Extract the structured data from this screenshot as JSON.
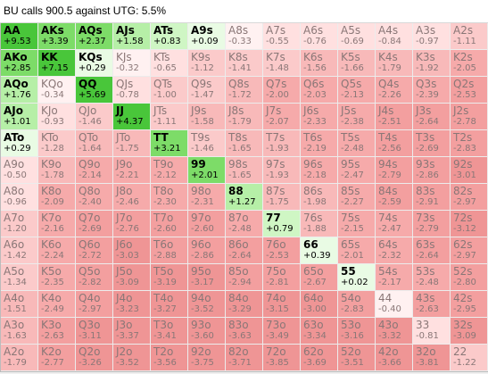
{
  "title": "BU calls 900.5 against UTG: 5.5%",
  "colors": {
    "strong_positive": "#6ccf54",
    "positive": "#c9f3bd",
    "light_positive": "#e8fbe3",
    "neutral_white": "#ffffff",
    "light_negative": "#ffdede",
    "negative": "#f5a9a9",
    "strong_negative": "#ef8f8f"
  },
  "grid": [
    [
      {
        "hand": "AA",
        "ev": "+9.53"
      },
      {
        "hand": "AKs",
        "ev": "+3.39"
      },
      {
        "hand": "AQs",
        "ev": "+2.37"
      },
      {
        "hand": "AJs",
        "ev": "+1.58"
      },
      {
        "hand": "ATs",
        "ev": "+0.83"
      },
      {
        "hand": "A9s",
        "ev": "+0.09"
      },
      {
        "hand": "A8s",
        "ev": "-0.33"
      },
      {
        "hand": "A7s",
        "ev": "-0.55"
      },
      {
        "hand": "A6s",
        "ev": "-0.76"
      },
      {
        "hand": "A5s",
        "ev": "-0.69"
      },
      {
        "hand": "A4s",
        "ev": "-0.84"
      },
      {
        "hand": "A3s",
        "ev": "-0.97"
      },
      {
        "hand": "A2s",
        "ev": "-1.11"
      }
    ],
    [
      {
        "hand": "AKo",
        "ev": "+2.85"
      },
      {
        "hand": "KK",
        "ev": "+7.15"
      },
      {
        "hand": "KQs",
        "ev": "+0.29"
      },
      {
        "hand": "KJs",
        "ev": "-0.32"
      },
      {
        "hand": "KTs",
        "ev": "-0.65"
      },
      {
        "hand": "K9s",
        "ev": "-1.12"
      },
      {
        "hand": "K8s",
        "ev": "-1.41"
      },
      {
        "hand": "K7s",
        "ev": "-1.48"
      },
      {
        "hand": "K6s",
        "ev": "-1.56"
      },
      {
        "hand": "K5s",
        "ev": "-1.66"
      },
      {
        "hand": "K4s",
        "ev": "-1.79"
      },
      {
        "hand": "K3s",
        "ev": "-1.92"
      },
      {
        "hand": "K2s",
        "ev": "-2.05"
      }
    ],
    [
      {
        "hand": "AQo",
        "ev": "+1.76"
      },
      {
        "hand": "KQo",
        "ev": "-0.34"
      },
      {
        "hand": "QQ",
        "ev": "+5.69"
      },
      {
        "hand": "QJs",
        "ev": "-0.78"
      },
      {
        "hand": "QTs",
        "ev": "-1.00"
      },
      {
        "hand": "Q9s",
        "ev": "-1.47"
      },
      {
        "hand": "Q8s",
        "ev": "-1.72"
      },
      {
        "hand": "Q7s",
        "ev": "-2.00"
      },
      {
        "hand": "Q6s",
        "ev": "-2.03"
      },
      {
        "hand": "Q5s",
        "ev": "-2.13"
      },
      {
        "hand": "Q4s",
        "ev": "-2.26"
      },
      {
        "hand": "Q3s",
        "ev": "-2.39"
      },
      {
        "hand": "Q2s",
        "ev": "-2.53"
      }
    ],
    [
      {
        "hand": "AJo",
        "ev": "+1.01"
      },
      {
        "hand": "KJo",
        "ev": "-0.93"
      },
      {
        "hand": "QJo",
        "ev": "-1.46"
      },
      {
        "hand": "JJ",
        "ev": "+4.37"
      },
      {
        "hand": "JTs",
        "ev": "-1.11"
      },
      {
        "hand": "J9s",
        "ev": "-1.58"
      },
      {
        "hand": "J8s",
        "ev": "-1.79"
      },
      {
        "hand": "J7s",
        "ev": "-2.07"
      },
      {
        "hand": "J6s",
        "ev": "-2.33"
      },
      {
        "hand": "J5s",
        "ev": "-2.38"
      },
      {
        "hand": "J4s",
        "ev": "-2.51"
      },
      {
        "hand": "J3s",
        "ev": "-2.64"
      },
      {
        "hand": "J2s",
        "ev": "-2.78"
      }
    ],
    [
      {
        "hand": "ATo",
        "ev": "+0.29"
      },
      {
        "hand": "KTo",
        "ev": "-1.28"
      },
      {
        "hand": "QTo",
        "ev": "-1.64"
      },
      {
        "hand": "JTo",
        "ev": "-1.75"
      },
      {
        "hand": "TT",
        "ev": "+3.21"
      },
      {
        "hand": "T9s",
        "ev": "-1.46"
      },
      {
        "hand": "T8s",
        "ev": "-1.65"
      },
      {
        "hand": "T7s",
        "ev": "-1.93"
      },
      {
        "hand": "T6s",
        "ev": "-2.19"
      },
      {
        "hand": "T5s",
        "ev": "-2.48"
      },
      {
        "hand": "T4s",
        "ev": "-2.56"
      },
      {
        "hand": "T3s",
        "ev": "-2.69"
      },
      {
        "hand": "T2s",
        "ev": "-2.83"
      }
    ],
    [
      {
        "hand": "A9o",
        "ev": "-0.50"
      },
      {
        "hand": "K9o",
        "ev": "-1.78"
      },
      {
        "hand": "Q9o",
        "ev": "-2.14"
      },
      {
        "hand": "J9o",
        "ev": "-2.21"
      },
      {
        "hand": "T9o",
        "ev": "-2.12"
      },
      {
        "hand": "99",
        "ev": "+2.01"
      },
      {
        "hand": "98s",
        "ev": "-1.65"
      },
      {
        "hand": "97s",
        "ev": "-1.93"
      },
      {
        "hand": "96s",
        "ev": "-2.18"
      },
      {
        "hand": "95s",
        "ev": "-2.47"
      },
      {
        "hand": "94s",
        "ev": "-2.79"
      },
      {
        "hand": "93s",
        "ev": "-2.86"
      },
      {
        "hand": "92s",
        "ev": "-3.01"
      }
    ],
    [
      {
        "hand": "A8o",
        "ev": "-0.96"
      },
      {
        "hand": "K8o",
        "ev": "-2.09"
      },
      {
        "hand": "Q8o",
        "ev": "-2.40"
      },
      {
        "hand": "J8o",
        "ev": "-2.46"
      },
      {
        "hand": "T8o",
        "ev": "-2.30"
      },
      {
        "hand": "98o",
        "ev": "-2.31"
      },
      {
        "hand": "88",
        "ev": "+1.27"
      },
      {
        "hand": "87s",
        "ev": "-1.75"
      },
      {
        "hand": "86s",
        "ev": "-1.98"
      },
      {
        "hand": "85s",
        "ev": "-2.27"
      },
      {
        "hand": "84s",
        "ev": "-2.59"
      },
      {
        "hand": "83s",
        "ev": "-2.91"
      },
      {
        "hand": "82s",
        "ev": "-2.97"
      }
    ],
    [
      {
        "hand": "A7o",
        "ev": "-1.20"
      },
      {
        "hand": "K7o",
        "ev": "-2.16"
      },
      {
        "hand": "Q7o",
        "ev": "-2.69"
      },
      {
        "hand": "J7o",
        "ev": "-2.76"
      },
      {
        "hand": "T7o",
        "ev": "-2.60"
      },
      {
        "hand": "97o",
        "ev": "-2.60"
      },
      {
        "hand": "87o",
        "ev": "-2.48"
      },
      {
        "hand": "77",
        "ev": "+0.79"
      },
      {
        "hand": "76s",
        "ev": "-1.88"
      },
      {
        "hand": "75s",
        "ev": "-2.15"
      },
      {
        "hand": "74s",
        "ev": "-2.47"
      },
      {
        "hand": "73s",
        "ev": "-2.79"
      },
      {
        "hand": "72s",
        "ev": "-3.12"
      }
    ],
    [
      {
        "hand": "A6o",
        "ev": "-1.42"
      },
      {
        "hand": "K6o",
        "ev": "-2.24"
      },
      {
        "hand": "Q6o",
        "ev": "-2.72"
      },
      {
        "hand": "J6o",
        "ev": "-3.03"
      },
      {
        "hand": "T6o",
        "ev": "-2.88"
      },
      {
        "hand": "96o",
        "ev": "-2.86"
      },
      {
        "hand": "86o",
        "ev": "-2.64"
      },
      {
        "hand": "76o",
        "ev": "-2.53"
      },
      {
        "hand": "66",
        "ev": "+0.39"
      },
      {
        "hand": "65s",
        "ev": "-2.01"
      },
      {
        "hand": "64s",
        "ev": "-2.32"
      },
      {
        "hand": "63s",
        "ev": "-2.64"
      },
      {
        "hand": "62s",
        "ev": "-2.97"
      }
    ],
    [
      {
        "hand": "A5o",
        "ev": "-1.34"
      },
      {
        "hand": "K5o",
        "ev": "-2.35"
      },
      {
        "hand": "Q5o",
        "ev": "-2.82"
      },
      {
        "hand": "J5o",
        "ev": "-3.09"
      },
      {
        "hand": "T5o",
        "ev": "-3.19"
      },
      {
        "hand": "95o",
        "ev": "-3.17"
      },
      {
        "hand": "85o",
        "ev": "-2.94"
      },
      {
        "hand": "75o",
        "ev": "-2.81"
      },
      {
        "hand": "65o",
        "ev": "-2.67"
      },
      {
        "hand": "55",
        "ev": "+0.02"
      },
      {
        "hand": "54s",
        "ev": "-2.17"
      },
      {
        "hand": "53s",
        "ev": "-2.48"
      },
      {
        "hand": "52s",
        "ev": "-2.80"
      }
    ],
    [
      {
        "hand": "A4o",
        "ev": "-1.51"
      },
      {
        "hand": "K4o",
        "ev": "-2.49"
      },
      {
        "hand": "Q4o",
        "ev": "-2.97"
      },
      {
        "hand": "J4o",
        "ev": "-3.23"
      },
      {
        "hand": "T4o",
        "ev": "-3.27"
      },
      {
        "hand": "94o",
        "ev": "-3.52"
      },
      {
        "hand": "84o",
        "ev": "-3.29"
      },
      {
        "hand": "74o",
        "ev": "-3.15"
      },
      {
        "hand": "64o",
        "ev": "-3.00"
      },
      {
        "hand": "54o",
        "ev": "-2.83"
      },
      {
        "hand": "44",
        "ev": "-0.40"
      },
      {
        "hand": "43s",
        "ev": "-2.63"
      },
      {
        "hand": "42s",
        "ev": "-2.95"
      }
    ],
    [
      {
        "hand": "A3o",
        "ev": "-1.63"
      },
      {
        "hand": "K3o",
        "ev": "-2.63"
      },
      {
        "hand": "Q3o",
        "ev": "-3.11"
      },
      {
        "hand": "J3o",
        "ev": "-3.37"
      },
      {
        "hand": "T3o",
        "ev": "-3.41"
      },
      {
        "hand": "93o",
        "ev": "-3.60"
      },
      {
        "hand": "83o",
        "ev": "-3.63"
      },
      {
        "hand": "73o",
        "ev": "-3.49"
      },
      {
        "hand": "63o",
        "ev": "-3.34"
      },
      {
        "hand": "53o",
        "ev": "-3.16"
      },
      {
        "hand": "43o",
        "ev": "-3.32"
      },
      {
        "hand": "33",
        "ev": "-0.81"
      },
      {
        "hand": "32s",
        "ev": "-3.09"
      }
    ],
    [
      {
        "hand": "A2o",
        "ev": "-1.79"
      },
      {
        "hand": "K2o",
        "ev": "-2.77"
      },
      {
        "hand": "Q2o",
        "ev": "-3.26"
      },
      {
        "hand": "J2o",
        "ev": "-3.52"
      },
      {
        "hand": "T2o",
        "ev": "-3.56"
      },
      {
        "hand": "92o",
        "ev": "-3.75"
      },
      {
        "hand": "82o",
        "ev": "-3.71"
      },
      {
        "hand": "72o",
        "ev": "-3.85"
      },
      {
        "hand": "62o",
        "ev": "-3.69"
      },
      {
        "hand": "52o",
        "ev": "-3.51"
      },
      {
        "hand": "42o",
        "ev": "-3.66"
      },
      {
        "hand": "32o",
        "ev": "-3.81"
      },
      {
        "hand": "22",
        "ev": "-1.22"
      }
    ]
  ]
}
